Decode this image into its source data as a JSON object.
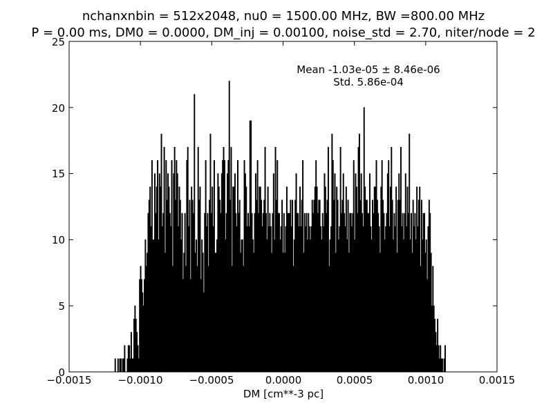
{
  "chart_data": {
    "type": "bar",
    "title_lines": [
      "nchanxnbin = 512x2048, nu0 = 1500.00 MHz, BW =800.00 MHz",
      "P = 0.00 ms, DM0 = 0.0000, DM_inj = 0.00100, noise_std = 2.70, niter/node = 2"
    ],
    "xlabel": "DM [cm**-3 pc]",
    "ylabel": "",
    "xlim": [
      -0.0015,
      0.0015
    ],
    "ylim": [
      0,
      25
    ],
    "xticks": [
      "−0.0015",
      "−0.0010",
      "−0.0005",
      "0.0000",
      "0.0005",
      "0.0010",
      "0.0015"
    ],
    "yticks": [
      "0",
      "5",
      "10",
      "15",
      "20",
      "25"
    ],
    "annotation": [
      "Mean -1.03e-05 ± 8.46e-06",
      "Std. 5.86e-04"
    ],
    "grid": false,
    "bar_color": "#000000",
    "bin_range": [
      -0.00118,
      0.00114
    ],
    "values": [
      1,
      0,
      0,
      1,
      0,
      1,
      1,
      0,
      1,
      1,
      2,
      0,
      0,
      1,
      2,
      2,
      1,
      3,
      1,
      1,
      4,
      5,
      4,
      3,
      2,
      1,
      7,
      8,
      7,
      6,
      5,
      7,
      10,
      8,
      9,
      12,
      13,
      14,
      11,
      16,
      10,
      10,
      15,
      12,
      14,
      16,
      10,
      15,
      14,
      18,
      11,
      12,
      17,
      9,
      16,
      13,
      15,
      14,
      12,
      11,
      16,
      8,
      15,
      17,
      13,
      16,
      15,
      11,
      14,
      13,
      10,
      12,
      7,
      9,
      12,
      8,
      16,
      17,
      11,
      13,
      7,
      14,
      13,
      12,
      21,
      9,
      10,
      8,
      17,
      13,
      14,
      7,
      10,
      9,
      6,
      12,
      16,
      11,
      12,
      8,
      13,
      18,
      12,
      14,
      11,
      16,
      9,
      9,
      10,
      15,
      14,
      13,
      12,
      15,
      16,
      17,
      16,
      10,
      12,
      15,
      16,
      22,
      13,
      17,
      8,
      14,
      14,
      15,
      12,
      11,
      16,
      12,
      13,
      9,
      10,
      10,
      8,
      16,
      15,
      14,
      11,
      12,
      11,
      19,
      19,
      12,
      10,
      9,
      12,
      15,
      13,
      16,
      12,
      14,
      14,
      13,
      11,
      12,
      13,
      17,
      12,
      10,
      14,
      11,
      12,
      11,
      9,
      12,
      15,
      10,
      17,
      13,
      16,
      12,
      12,
      10,
      11,
      13,
      9,
      12,
      9,
      11,
      14,
      12,
      12,
      12,
      13,
      11,
      13,
      8,
      10,
      13,
      15,
      12,
      12,
      11,
      14,
      11,
      13,
      16,
      9,
      12,
      11,
      12,
      10,
      12,
      11,
      10,
      11,
      13,
      12,
      13,
      14,
      16,
      14,
      12,
      13,
      13,
      11,
      10,
      12,
      11,
      15,
      14,
      12,
      13,
      17,
      8,
      10,
      11,
      18,
      16,
      13,
      15,
      9,
      14,
      13,
      10,
      11,
      17,
      12,
      13,
      15,
      12,
      11,
      14,
      10,
      13,
      9,
      12,
      12,
      11,
      12,
      16,
      10,
      15,
      14,
      12,
      17,
      18,
      13,
      15,
      12,
      11,
      20,
      14,
      13,
      13,
      12,
      12,
      15,
      11,
      10,
      13,
      12,
      14,
      14,
      16,
      13,
      12,
      11,
      9,
      14,
      16,
      13,
      12,
      10,
      11,
      12,
      15,
      16,
      11,
      14,
      17,
      13,
      10,
      12,
      11,
      14,
      9,
      13,
      15,
      13,
      17,
      11,
      12,
      10,
      12,
      15,
      11,
      14,
      12,
      18,
      10,
      12,
      9,
      13,
      11,
      12,
      10,
      14,
      11,
      13,
      14,
      8,
      13,
      10,
      12,
      12,
      9,
      10,
      7,
      11,
      13,
      12,
      9,
      5,
      8,
      5,
      4,
      3,
      2,
      4,
      2,
      1,
      2,
      1,
      1,
      0,
      1,
      2
    ]
  }
}
